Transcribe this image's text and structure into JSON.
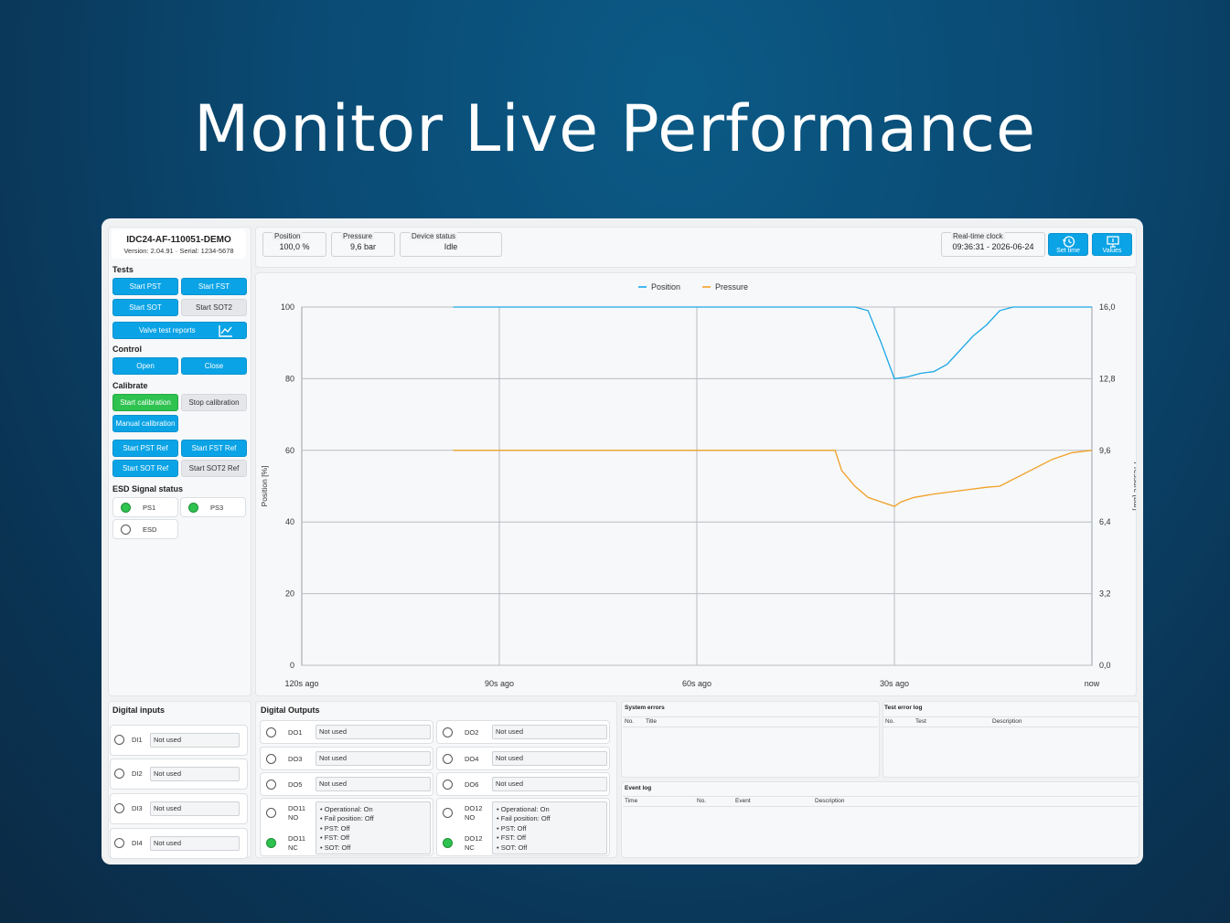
{
  "headline": "Monitor Live Performance",
  "device": {
    "id": "IDC24-AF-110051-DEMO",
    "version_line": "Version: 2.04.91 · Serial: 1234-5678"
  },
  "status": {
    "position": {
      "label": "Position",
      "value": "100,0 %"
    },
    "pressure": {
      "label": "Pressure",
      "value": "9,6 bar"
    },
    "device_status": {
      "label": "Device status",
      "value": "Idle"
    },
    "clock": {
      "label": "Real-time clock",
      "value": "09:36:31 - 2026-06-24"
    }
  },
  "toolbar": {
    "set_time": "Set time",
    "values": "Values"
  },
  "tests": {
    "title": "Tests",
    "start_pst": "Start PST",
    "start_fst": "Start FST",
    "start_sot": "Start SOT",
    "start_sot2": "Start SOT2",
    "valve_reports": "Valve test reports"
  },
  "control": {
    "title": "Control",
    "open": "Open",
    "close": "Close"
  },
  "calibrate": {
    "title": "Calibrate",
    "start": "Start calibration",
    "stop": "Stop calibration",
    "manual": "Manual calibration",
    "pst_ref": "Start PST Ref",
    "fst_ref": "Start FST Ref",
    "sot_ref": "Start SOT Ref",
    "sot2_ref": "Start SOT2 Ref"
  },
  "esd": {
    "title": "ESD Signal status",
    "signals": [
      {
        "name": "PS1",
        "active": true
      },
      {
        "name": "PS3",
        "active": true
      },
      {
        "name": "ESD",
        "active": false
      }
    ]
  },
  "chart_data": {
    "type": "line",
    "x_ticks": [
      "120s ago",
      "90s ago",
      "60s ago",
      "30s ago",
      "now"
    ],
    "x_unit": "seconds ago",
    "xlim": [
      120,
      0
    ],
    "ylabel": "Position [%]",
    "ylim": [
      0,
      100
    ],
    "y_ticks": [
      "0",
      "20",
      "40",
      "60",
      "80",
      "100"
    ],
    "y2label": "Pressure [bar]",
    "y2lim": [
      0,
      16
    ],
    "y2_ticks": [
      "0,0",
      "3,2",
      "6,4",
      "9,6",
      "12,8",
      "16,0"
    ],
    "legend_position": "top-center",
    "grid": true,
    "series": [
      {
        "name": "Position",
        "axis": "left",
        "color": "#1aa7e8",
        "points": [
          [
            97,
            100
          ],
          [
            80,
            100
          ],
          [
            60,
            100
          ],
          [
            45,
            100
          ],
          [
            36,
            100
          ],
          [
            34,
            99
          ],
          [
            32,
            90
          ],
          [
            30,
            80
          ],
          [
            28,
            80.5
          ],
          [
            26,
            81.5
          ],
          [
            24,
            82
          ],
          [
            22,
            84
          ],
          [
            20,
            88
          ],
          [
            18,
            92
          ],
          [
            16,
            95
          ],
          [
            14,
            99
          ],
          [
            12,
            100
          ],
          [
            5,
            100
          ],
          [
            0,
            100
          ]
        ]
      },
      {
        "name": "Pressure",
        "axis": "right",
        "color": "#f0a027",
        "points": [
          [
            97,
            9.6
          ],
          [
            60,
            9.6
          ],
          [
            39,
            9.6
          ],
          [
            38,
            8.7
          ],
          [
            36,
            8.0
          ],
          [
            34,
            7.5
          ],
          [
            32,
            7.3
          ],
          [
            30,
            7.1
          ],
          [
            29,
            7.3
          ],
          [
            27,
            7.5
          ],
          [
            24,
            7.65
          ],
          [
            20,
            7.8
          ],
          [
            16,
            7.95
          ],
          [
            14,
            8.0
          ],
          [
            10,
            8.6
          ],
          [
            6,
            9.2
          ],
          [
            3,
            9.5
          ],
          [
            0,
            9.6
          ]
        ]
      }
    ]
  },
  "digital_inputs": {
    "title": "Digital inputs",
    "items": [
      {
        "name": "DI1",
        "value": "Not used"
      },
      {
        "name": "DI2",
        "value": "Not used"
      },
      {
        "name": "DI3",
        "value": "Not used"
      },
      {
        "name": "DI4",
        "value": "Not used"
      }
    ]
  },
  "digital_outputs": {
    "title": "Digital Outputs",
    "simple": [
      {
        "name": "DO1",
        "value": "Not used"
      },
      {
        "name": "DO2",
        "value": "Not used"
      },
      {
        "name": "DO3",
        "value": "Not used"
      },
      {
        "name": "DO4",
        "value": "Not used"
      },
      {
        "name": "DO5",
        "value": "Not used"
      },
      {
        "name": "DO6",
        "value": "Not used"
      }
    ],
    "groups": [
      {
        "no_name": "DO11",
        "no_tag": "NO",
        "nc_name": "DO11",
        "nc_tag": "NC",
        "lines": [
          "• Operational: On",
          "• Fail position: Off",
          "• PST: Off",
          "• FST: Off",
          "• SOT: Off"
        ]
      },
      {
        "no_name": "DO12",
        "no_tag": "NO",
        "nc_name": "DO12",
        "nc_tag": "NC",
        "lines": [
          "• Operational: On",
          "• Fail position: Off",
          "• PST: Off",
          "• FST: Off",
          "• SOT: Off"
        ]
      }
    ]
  },
  "system_errors": {
    "title": "System errors",
    "cols": [
      "No.",
      "Title"
    ]
  },
  "test_error_log": {
    "title": "Test error log",
    "cols": [
      "No.",
      "Test",
      "Description"
    ]
  },
  "event_log": {
    "title": "Event log",
    "cols": [
      "Time",
      "No.",
      "Event",
      "Description"
    ]
  }
}
